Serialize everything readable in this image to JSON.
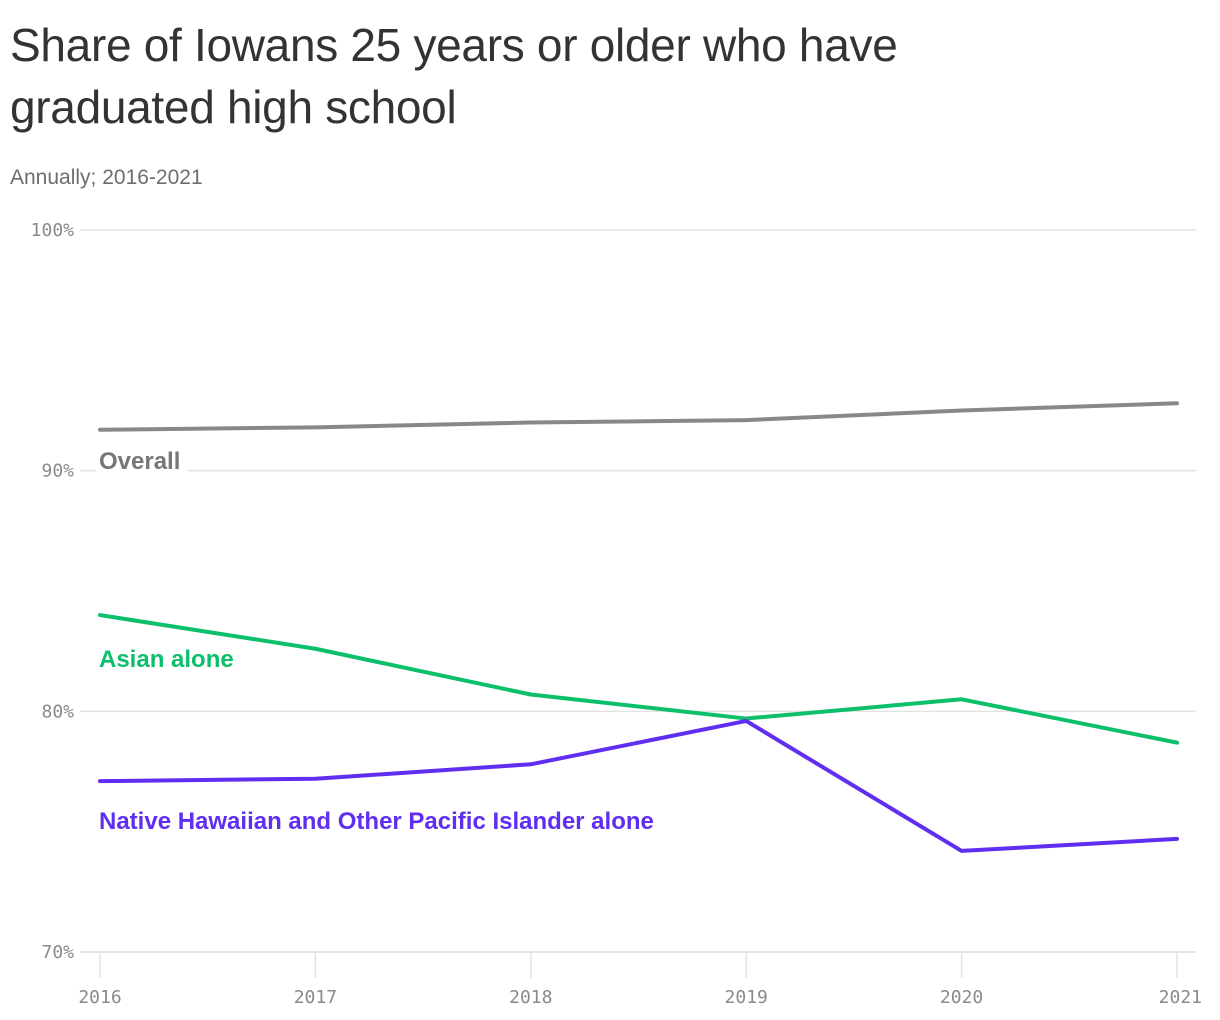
{
  "header": {
    "title": "Share of Iowans 25 years or older who have graduated high school",
    "subtitle": "Annually; 2016-2021"
  },
  "colors": {
    "overall": "#888888",
    "asian": "#0cbf6a",
    "nhpi": "#5f2ef0",
    "grid": "#e3e3e3",
    "tick_text": "#8a8a8a"
  },
  "chart_data": {
    "type": "line",
    "title": "Share of Iowans 25 years or older who have graduated high school",
    "subtitle": "Annually; 2016-2021",
    "xlabel": "",
    "ylabel": "",
    "x": [
      2016,
      2017,
      2018,
      2019,
      2020,
      2021
    ],
    "x_tick_labels": [
      "2016",
      "2017",
      "2018",
      "2019",
      "2020",
      "2021"
    ],
    "y_tick_labels": [
      "100%",
      "90%",
      "80%",
      "70%"
    ],
    "y_ticks": [
      100,
      90,
      80,
      70
    ],
    "ylim": [
      70,
      100
    ],
    "grid": true,
    "legend": "inline labels",
    "series": [
      {
        "name": "Overall",
        "color": "#888888",
        "values": [
          91.7,
          91.8,
          92.0,
          92.1,
          92.5,
          92.8
        ]
      },
      {
        "name": "Asian alone",
        "color": "#0cbf6a",
        "values": [
          84.0,
          82.6,
          80.7,
          79.7,
          80.5,
          78.7
        ]
      },
      {
        "name": "Native Hawaiian and Other Pacific Islander alone",
        "color": "#5f2ef0",
        "values": [
          77.1,
          77.2,
          77.8,
          79.6,
          74.2,
          74.7
        ]
      }
    ]
  }
}
